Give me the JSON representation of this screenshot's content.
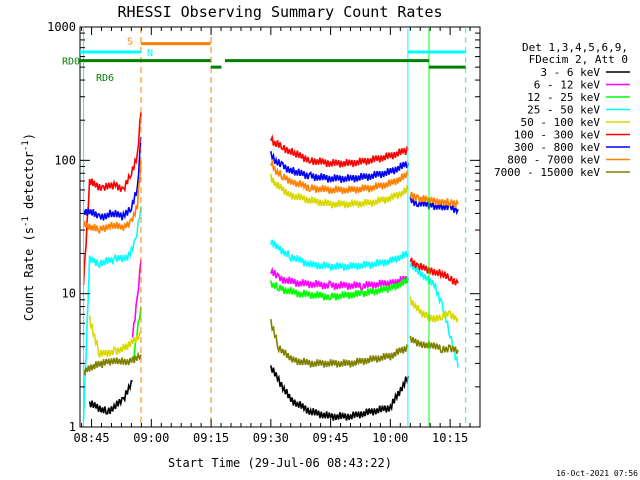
{
  "chart_data": {
    "type": "line",
    "title": "RHESSI Observing Summary Count Rates",
    "xlabel": "Start Time (29-Jul-06 08:43:22)",
    "ylabel_main": "Count Rate (s",
    "ylabel_sup1": "-1",
    "ylabel_mid": " detector",
    "ylabel_sup2": "-1",
    "ylabel_end": ")",
    "y_scale": "log",
    "ylim": [
      1,
      1000
    ],
    "xlim_minutes": [
      -2.9,
      97.5
    ],
    "x_ticks": [
      {
        "label": "08:45",
        "minute": 0
      },
      {
        "label": "09:00",
        "minute": 15
      },
      {
        "label": "09:15",
        "minute": 30
      },
      {
        "label": "09:30",
        "minute": 45
      },
      {
        "label": "09:45",
        "minute": 60
      },
      {
        "label": "10:00",
        "minute": 75
      },
      {
        "label": "10:15",
        "minute": 90
      }
    ],
    "y_ticks": [
      {
        "label": "1",
        "value": 1
      },
      {
        "label": "10",
        "value": 10
      },
      {
        "label": "100",
        "value": 100
      },
      {
        "label": "1000",
        "value": 1000
      }
    ],
    "legend_header": [
      "Det 1,3,4,5,6,9,",
      "FDecim 2, Att 0"
    ],
    "legend_placement": "right",
    "series": [
      {
        "name": "3 - 6 keV",
        "color": "#000000",
        "segments": [
          {
            "x": [
              -0.5,
              4,
              8,
              10.3
            ],
            "y": [
              1.5,
              1.3,
              1.6,
              2.2
            ]
          },
          {
            "x": [
              45,
              50,
              55,
              60,
              65,
              70,
              75,
              79.5
            ],
            "y": [
              2.8,
              1.6,
              1.3,
              1.2,
              1.2,
              1.3,
              1.4,
              2.4
            ]
          }
        ]
      },
      {
        "name": "6 - 12 keV",
        "color": "#ff00ff",
        "segments": [
          {
            "x": [
              10.3,
              11.5,
              12.4
            ],
            "y": [
              5.0,
              9.0,
              18.0
            ]
          },
          {
            "x": [
              45,
              47,
              52,
              60,
              68,
              75,
              79.5
            ],
            "y": [
              15.0,
              13.0,
              12.0,
              11.5,
              11.5,
              12.0,
              13.0
            ]
          }
        ]
      },
      {
        "name": "12 - 25 keV",
        "color": "#00ff00",
        "segments": [
          {
            "x": [
              10.3,
              12.4
            ],
            "y": [
              3.0,
              8.0
            ]
          },
          {
            "x": [
              45,
              47,
              52,
              60,
              68,
              75,
              79.5
            ],
            "y": [
              12.0,
              11.0,
              10.0,
              9.5,
              10.0,
              11.0,
              12.5
            ]
          }
        ]
      },
      {
        "name": "25 - 50 keV",
        "color": "#00ffff",
        "segments": [
          {
            "x": [
              -2.0,
              -0.5,
              2,
              6,
              9,
              11,
              12.4
            ],
            "y": [
              1.2,
              18.0,
              17.0,
              18.0,
              19.0,
              24.0,
              45.0
            ]
          },
          {
            "x": [
              45,
              46,
              50,
              55,
              60,
              65,
              70,
              75,
              79.5
            ],
            "y": [
              25.0,
              23.0,
              19.0,
              16.5,
              16.0,
              16.0,
              16.5,
              17.5,
              20.0
            ]
          },
          {
            "x": [
              80,
              83,
              86,
              88,
              90,
              92
            ],
            "y": [
              17.0,
              13.5,
              12.0,
              8.0,
              5.0,
              2.8
            ]
          }
        ]
      },
      {
        "name": "50 - 100 keV",
        "color": "#d8d800",
        "segments": [
          {
            "x": [
              -0.5,
              2,
              6,
              9,
              12.4
            ],
            "y": [
              6.5,
              3.5,
              3.7,
              4.0,
              5.0
            ]
          },
          {
            "x": [
              45,
              46.5,
              50,
              55,
              60,
              65,
              70,
              75,
              79.5
            ],
            "y": [
              75.0,
              65.0,
              55.0,
              50.0,
              47.0,
              47.0,
              48.0,
              52.0,
              60.0
            ]
          },
          {
            "x": [
              80,
              83,
              86,
              88,
              90,
              92
            ],
            "y": [
              9.0,
              7.0,
              6.5,
              6.8,
              7.0,
              6.5
            ]
          }
        ]
      },
      {
        "name": "100 - 300 keV",
        "color": "#ff0000",
        "segments": [
          {
            "x": [
              -2.0,
              -0.5,
              1,
              3,
              6,
              8,
              10,
              11.5,
              12.4
            ],
            "y": [
              12.0,
              70.0,
              65.0,
              62.0,
              66.0,
              60.0,
              80.0,
              110.0,
              230.0
            ]
          },
          {
            "x": [
              45,
              46,
              48,
              51,
              55,
              60,
              65,
              70,
              75,
              79.5
            ],
            "y": [
              145.0,
              135.0,
              125.0,
              112.0,
              100.0,
              95.0,
              95.0,
              100.0,
              108.0,
              120.0
            ]
          },
          {
            "x": [
              80,
              82,
              85,
              88,
              90,
              92
            ],
            "y": [
              18.0,
              16.0,
              15.0,
              14.0,
              13.0,
              12.0
            ]
          }
        ]
      },
      {
        "name": "300 - 800 keV",
        "color": "#0000ff",
        "segments": [
          {
            "x": [
              -2.0,
              -0.5,
              2,
              5,
              8,
              10,
              11.5,
              12.4
            ],
            "y": [
              40.0,
              42.0,
              37.0,
              40.0,
              38.0,
              45.0,
              60.0,
              150.0
            ]
          },
          {
            "x": [
              45,
              46,
              48,
              51,
              55,
              60,
              65,
              70,
              75,
              79.5
            ],
            "y": [
              110.0,
              100.0,
              90.0,
              82.0,
              76.0,
              73.0,
              73.0,
              76.0,
              82.0,
              95.0
            ]
          },
          {
            "x": [
              80,
              82,
              85,
              88,
              90,
              92
            ],
            "y": [
              50.0,
              48.0,
              46.0,
              45.0,
              44.0,
              43.0
            ]
          }
        ]
      },
      {
        "name": "800 - 7000 keV",
        "color": "#ff8000",
        "segments": [
          {
            "x": [
              -2.0,
              -0.5,
              2,
              5,
              8,
              10,
              11.5,
              12.4
            ],
            "y": [
              33.0,
              32.0,
              30.0,
              33.0,
              31.0,
              35.0,
              45.0,
              100.0
            ]
          },
          {
            "x": [
              45,
              46,
              48,
              51,
              55,
              60,
              65,
              70,
              75,
              79.5
            ],
            "y": [
              95.0,
              85.0,
              75.0,
              68.0,
              62.0,
              60.0,
              60.0,
              62.0,
              67.0,
              78.0
            ]
          },
          {
            "x": [
              80,
              82,
              85,
              88,
              90,
              92
            ],
            "y": [
              55.0,
              52.0,
              50.0,
              49.0,
              48.0,
              47.0
            ]
          }
        ]
      },
      {
        "name": "7000 - 15000 keV",
        "color": "#808000",
        "segments": [
          {
            "x": [
              -2.0,
              -0.5,
              3,
              6,
              9,
              12.4
            ],
            "y": [
              2.5,
              2.8,
              3.0,
              3.2,
              3.0,
              3.5
            ]
          },
          {
            "x": [
              45,
              47,
              50,
              55,
              60,
              65,
              70,
              75,
              79.5
            ],
            "y": [
              6.0,
              4.0,
              3.2,
              3.0,
              3.0,
              3.0,
              3.2,
              3.4,
              4.0
            ]
          },
          {
            "x": [
              80,
              83,
              86,
              88,
              90,
              92
            ],
            "y": [
              4.5,
              4.2,
              4.0,
              3.9,
              3.8,
              3.8
            ]
          }
        ]
      }
    ],
    "vertical_markers": [
      {
        "minute": -2.0,
        "color": "#00ffff",
        "style": "solid"
      },
      {
        "minute": 12.4,
        "color": "#ff8000",
        "style": "dashed"
      },
      {
        "minute": 30.0,
        "color": "#ff8000",
        "style": "dashed"
      },
      {
        "minute": 79.4,
        "color": "#00ffff",
        "style": "solid"
      },
      {
        "minute": 84.7,
        "color": "#00ff00",
        "style": "solid"
      },
      {
        "minute": 93.9,
        "color": "#00ffff",
        "style": "dashed"
      }
    ],
    "status_bars": [
      {
        "label": "S",
        "color": "#ff8000",
        "value": 750,
        "segments": [
          [
            12.4,
            29.9
          ]
        ]
      },
      {
        "label": "N",
        "color": "#00ffff",
        "value": 650,
        "segments": [
          [
            -2.9,
            12.4
          ],
          [
            79.4,
            93.9
          ]
        ]
      },
      {
        "label": "RD0",
        "color": "#008000",
        "value": 560,
        "segments": [
          [
            -2.9,
            29.9
          ],
          [
            33.5,
            84.7
          ]
        ]
      },
      {
        "label": "RD6",
        "color": "#008000",
        "value": 500,
        "segments": [
          [
            29.9,
            32.6
          ],
          [
            84.7,
            93.9
          ]
        ]
      }
    ]
  },
  "footer": {
    "timestamp": "16-Oct-2021 07:56"
  }
}
